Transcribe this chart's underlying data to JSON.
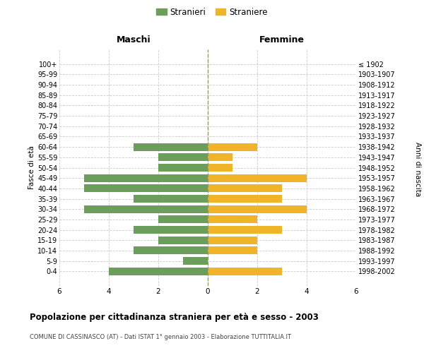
{
  "age_groups": [
    "100+",
    "95-99",
    "90-94",
    "85-89",
    "80-84",
    "75-79",
    "70-74",
    "65-69",
    "60-64",
    "55-59",
    "50-54",
    "45-49",
    "40-44",
    "35-39",
    "30-34",
    "25-29",
    "20-24",
    "15-19",
    "10-14",
    "5-9",
    "0-4"
  ],
  "birth_years": [
    "≤ 1902",
    "1903-1907",
    "1908-1912",
    "1913-1917",
    "1918-1922",
    "1923-1927",
    "1928-1932",
    "1933-1937",
    "1938-1942",
    "1943-1947",
    "1948-1952",
    "1953-1957",
    "1958-1962",
    "1963-1967",
    "1968-1972",
    "1973-1977",
    "1978-1982",
    "1983-1987",
    "1988-1992",
    "1993-1997",
    "1998-2002"
  ],
  "maschi": [
    0,
    0,
    0,
    0,
    0,
    0,
    0,
    0,
    3,
    2,
    2,
    5,
    5,
    3,
    5,
    2,
    3,
    2,
    3,
    1,
    4
  ],
  "femmine": [
    0,
    0,
    0,
    0,
    0,
    0,
    0,
    0,
    2,
    1,
    1,
    4,
    3,
    3,
    4,
    2,
    3,
    2,
    2,
    0,
    3
  ],
  "color_maschi": "#6a9e5a",
  "color_femmine": "#f0b429",
  "background_color": "#ffffff",
  "grid_color": "#cccccc",
  "title": "Popolazione per cittadinanza straniera per età e sesso - 2003",
  "subtitle": "COMUNE DI CASSINASCO (AT) - Dati ISTAT 1° gennaio 2003 - Elaborazione TUTTITALIA.IT",
  "ylabel_left": "Fasce di età",
  "ylabel_right": "Anni di nascita",
  "label_maschi": "Maschi",
  "label_femmine": "Femmine",
  "legend_stranieri": "Stranieri",
  "legend_straniere": "Straniere",
  "xlim": 6,
  "bar_height": 0.75
}
